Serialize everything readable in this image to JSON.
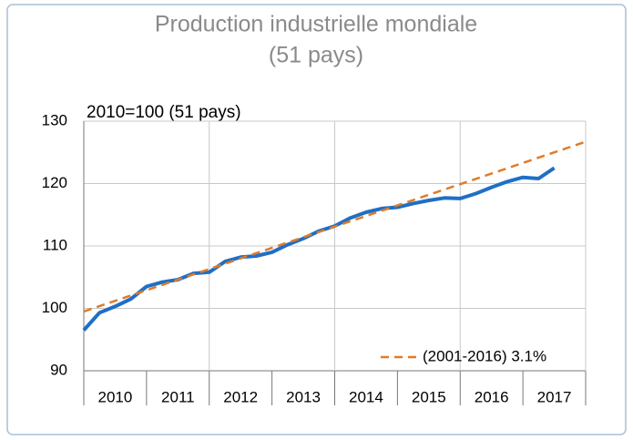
{
  "chart_data": {
    "type": "line",
    "title": "Production industrielle mondiale",
    "subtitle": "(51 pays)",
    "y_label": "2010=100 (51 pays)",
    "categories": [
      "2010",
      "2011",
      "2012",
      "2013",
      "2014",
      "2015",
      "2016",
      "2017"
    ],
    "xlim": [
      2010,
      2018
    ],
    "ylim": [
      90,
      130
    ],
    "yticks": [
      90,
      100,
      110,
      120,
      130
    ],
    "grid": true,
    "legend": "bottom-right",
    "series": [
      {
        "name": null,
        "color": "#1f6fc5",
        "x": [
          2010,
          2010.25,
          2010.5,
          2010.75,
          2011,
          2011.25,
          2011.5,
          2011.75,
          2012,
          2012.25,
          2012.5,
          2012.75,
          2013,
          2013.25,
          2013.5,
          2013.75,
          2014,
          2014.25,
          2014.5,
          2014.75,
          2015,
          2015.25,
          2015.5,
          2015.75,
          2016,
          2016.25,
          2016.5,
          2016.75,
          2017,
          2017.25,
          2017.5
        ],
        "values": [
          96.5,
          99.3,
          100.3,
          101.5,
          103.5,
          104.2,
          104.6,
          105.6,
          105.8,
          107.5,
          108.2,
          108.4,
          109.0,
          110.2,
          111.2,
          112.4,
          113.2,
          114.5,
          115.4,
          116.0,
          116.2,
          116.8,
          117.3,
          117.7,
          117.6,
          118.4,
          119.4,
          120.3,
          121.0,
          120.8,
          122.5
        ]
      },
      {
        "name": "(2001-2016) 3.1%",
        "color": "#e07b29",
        "dashed": true,
        "x": [
          2010,
          2018
        ],
        "values": [
          99.5,
          126.7
        ]
      }
    ]
  }
}
